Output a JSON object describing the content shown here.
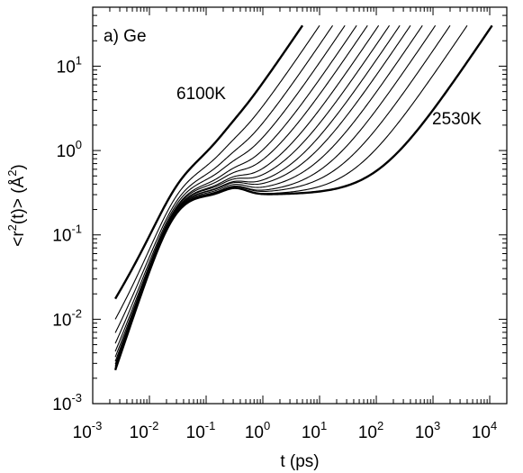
{
  "chart_data": {
    "type": "line",
    "panel_label": "a) Ge",
    "xlabel": "t (ps)",
    "ylabel_parts": {
      "pre": "<r",
      "sup1": "2",
      "mid": "(t)> (Å",
      "sup2": "2",
      "post": ")"
    },
    "x_scale": "log",
    "y_scale": "log",
    "xlim": [
      0.001,
      20000
    ],
    "ylim": [
      0.001,
      50
    ],
    "x_ticks": [
      {
        "base": "10",
        "exp": "-3",
        "value": 0.001
      },
      {
        "base": "10",
        "exp": "-2",
        "value": 0.01
      },
      {
        "base": "10",
        "exp": "-1",
        "value": 0.1
      },
      {
        "base": "10",
        "exp": "0",
        "value": 1
      },
      {
        "base": "10",
        "exp": "1",
        "value": 10
      },
      {
        "base": "10",
        "exp": "2",
        "value": 100
      },
      {
        "base": "10",
        "exp": "3",
        "value": 1000
      },
      {
        "base": "10",
        "exp": "4",
        "value": 10000
      }
    ],
    "y_ticks": [
      {
        "base": "10",
        "exp": "-3",
        "value": 0.001
      },
      {
        "base": "10",
        "exp": "-2",
        "value": 0.01
      },
      {
        "base": "10",
        "exp": "-1",
        "value": 0.1
      },
      {
        "base": "10",
        "exp": "0",
        "value": 1
      },
      {
        "base": "10",
        "exp": "1",
        "value": 10
      }
    ],
    "annotations": [
      {
        "text": "6100K"
      },
      {
        "text": "2530K"
      }
    ],
    "series": [
      {
        "t_end": 5,
        "plateau": 0.37,
        "bold": true
      },
      {
        "t_end": 10,
        "plateau": 0.37,
        "bold": false
      },
      {
        "t_end": 17,
        "plateau": 0.36,
        "bold": false
      },
      {
        "t_end": 28,
        "plateau": 0.36,
        "bold": false
      },
      {
        "t_end": 45,
        "plateau": 0.35,
        "bold": false
      },
      {
        "t_end": 70,
        "plateau": 0.35,
        "bold": false
      },
      {
        "t_end": 110,
        "plateau": 0.34,
        "bold": false
      },
      {
        "t_end": 170,
        "plateau": 0.34,
        "bold": false
      },
      {
        "t_end": 260,
        "plateau": 0.33,
        "bold": false
      },
      {
        "t_end": 400,
        "plateau": 0.33,
        "bold": false
      },
      {
        "t_end": 650,
        "plateau": 0.32,
        "bold": false
      },
      {
        "t_end": 1100,
        "plateau": 0.31,
        "bold": false
      },
      {
        "t_end": 2000,
        "plateau": 0.31,
        "bold": false
      },
      {
        "t_end": 4000,
        "plateau": 0.3,
        "bold": false
      },
      {
        "t_end": 11000,
        "plateau": 0.3,
        "bold": true
      }
    ]
  }
}
